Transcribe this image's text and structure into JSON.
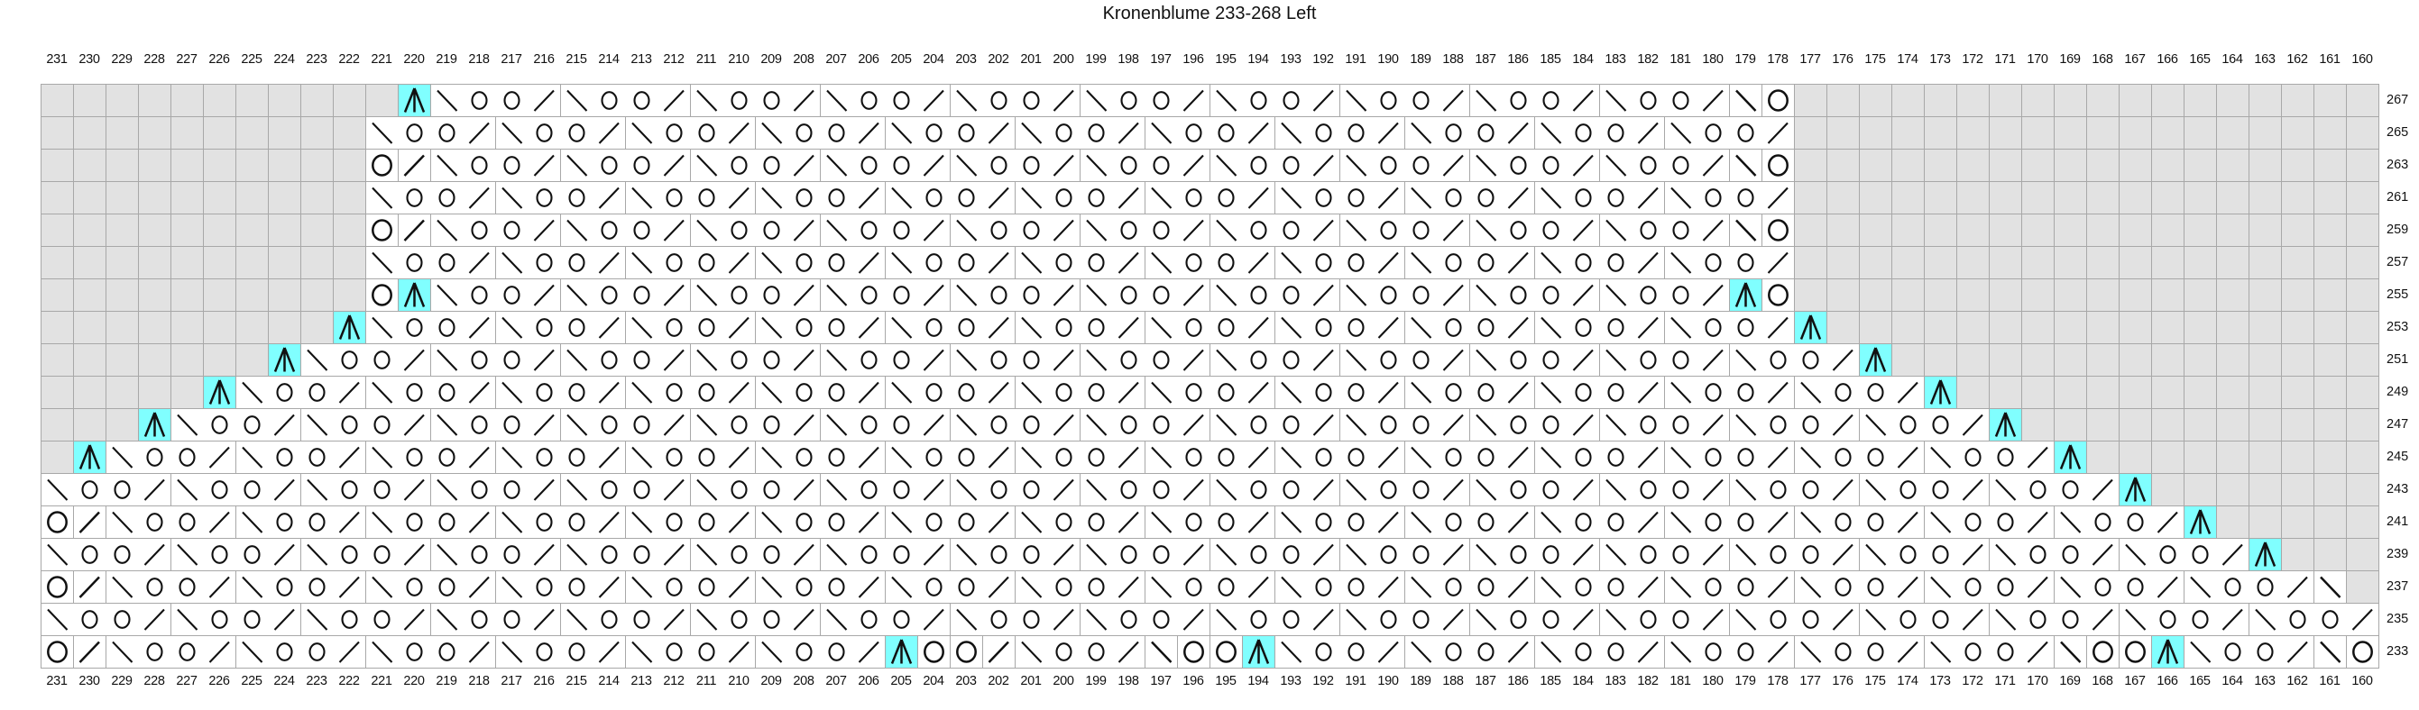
{
  "title": "Kronenblume 233-268 Left",
  "column_labels": [
    "231",
    "230",
    "229",
    "228",
    "227",
    "226",
    "225",
    "224",
    "223",
    "222",
    "221",
    "220",
    "219",
    "218",
    "217",
    "216",
    "215",
    "214",
    "213",
    "212",
    "211",
    "210",
    "209",
    "208",
    "207",
    "206",
    "205",
    "204",
    "203",
    "202",
    "201",
    "200",
    "199",
    "198",
    "197",
    "196",
    "195",
    "194",
    "193",
    "192",
    "191",
    "190",
    "189",
    "188",
    "187",
    "186",
    "185",
    "184",
    "183",
    "182",
    "181",
    "180",
    "179",
    "178",
    "177",
    "176",
    "175",
    "174",
    "173",
    "172",
    "171",
    "170",
    "169",
    "168",
    "167",
    "166",
    "165",
    "164",
    "163",
    "162",
    "161",
    "160"
  ],
  "row_labels": [
    "267",
    "265",
    "263",
    "261",
    "259",
    "257",
    "255",
    "253",
    "251",
    "249",
    "247",
    "245",
    "243",
    "241",
    "239",
    "237",
    "235",
    "233"
  ],
  "symbols": {
    "\\": "ssk-left-leaning-decrease",
    "/": "k2tog-right-leaning-decrease",
    "O": "yarn-over",
    "A": "central-double-decrease-highlighted",
    ".": "no-stitch"
  },
  "colors": {
    "highlight": "#80ffff",
    "no_stitch_fill": "#e2e2e2",
    "stitch_fill": "#ffffff",
    "grid_line": "#a8a8a8",
    "symbol": "#111111"
  },
  "rows": [
    {
      "label": "267",
      "cells": "...........A\\OO/\\OO/\\OO/\\OO/\\OO/\\OO/\\OO/\\OO/\\OO/\\OO/\\O.................."
    },
    {
      "label": "265",
      "cells": "..........\\OO/\\OO/\\OO/\\OO/\\OO/\\OO/\\OO/\\OO/\\OO/\\OO/\\OO/.................."
    },
    {
      "label": "263",
      "cells": "..........O/\\OO/\\OO/\\OO/\\OO/\\OO/\\OO/\\OO/\\OO/\\OO/\\OO/\\O.................."
    },
    {
      "label": "261",
      "cells": "..........\\OO/\\OO/\\OO/\\OO/\\OO/\\OO/\\OO/\\OO/\\OO/\\OO/\\OO/.................."
    },
    {
      "label": "259",
      "cells": "..........O/\\OO/\\OO/\\OO/\\OO/\\OO/\\OO/\\OO/\\OO/\\OO/\\OO/\\O.................."
    },
    {
      "label": "257",
      "cells": "..........\\OO/\\OO/\\OO/\\OO/\\OO/\\OO/\\OO/\\OO/\\OO/\\OO/\\OO/.................."
    },
    {
      "label": "255",
      "cells": "..........OA\\OO/\\OO/\\OO/\\OO/\\OO/\\OO/\\OO/\\OO/\\OO/\\OO/AO.................."
    },
    {
      "label": "253",
      "cells": ".........A\\OO/\\OO/\\OO/\\OO/\\OO/\\OO/\\OO/\\OO/\\OO/\\OO/\\OO/A................."
    },
    {
      "label": "251",
      "cells": ".......A\\OO/\\OO/\\OO/\\OO/\\OO/\\OO/\\OO/\\OO/\\OO/\\OO/\\OO/\\OO/A..............."
    },
    {
      "label": "249",
      "cells": ".....A\\OO/\\OO/\\OO/\\OO/\\OO/\\OO/\\OO/\\OO/\\OO/\\OO/\\OO/\\OO/\\OO/A............."
    },
    {
      "label": "247",
      "cells": "...A\\OO/\\OO/\\OO/\\OO/\\OO/\\OO/\\OO/\\OO/\\OO/\\OO/\\OO/\\OO/\\OO/\\OO/A..........."
    },
    {
      "label": "245",
      "cells": ".A\\OO/\\OO/\\OO/\\OO/\\OO/\\OO/\\OO/\\OO/\\OO/\\OO/\\OO/\\OO/\\OO/\\OO/\\OO/A........."
    },
    {
      "label": "243",
      "cells": "\\OO/\\OO/\\OO/\\OO/\\OO/\\OO/\\OO/\\OO/\\OO/\\OO/\\OO/\\OO/\\OO/\\OO/\\OO/\\OO/A......."
    },
    {
      "label": "241",
      "cells": "O/\\OO/\\OO/\\OO/\\OO/\\OO/\\OO/\\OO/\\OO/\\OO/\\OO/\\OO/\\OO/\\OO/\\OO/\\OO/\\OO/A....."
    },
    {
      "label": "239",
      "cells": "\\OO/\\OO/\\OO/\\OO/\\OO/\\OO/\\OO/\\OO/\\OO/\\OO/\\OO/\\OO/\\OO/\\OO/\\OO/\\OO/\\OO/A..."
    },
    {
      "label": "237",
      "cells": "O/\\OO/\\OO/\\OO/\\OO/\\OO/\\OO/\\OO/\\OO/\\OO/\\OO/\\OO/\\OO/\\OO/\\OO/\\OO/\\OO/\\OO/\\."
    },
    {
      "label": "235",
      "cells": "\\OO/\\OO/\\OO/\\OO/\\OO/\\OO/\\OO/\\OO/\\OO/\\OO/\\OO/\\OO/\\OO/\\OO/\\OO/\\OO/\\OO/\\OO/"
    },
    {
      "label": "233",
      "cells": "O/\\OO/\\OO/\\OO/\\OO/\\OO/\\OO/AOO/\\OO/\\OOA\\OO/\\OO/\\OO/\\OO/\\OO/\\OO/\\OOA\\OO/\\O"
    }
  ]
}
